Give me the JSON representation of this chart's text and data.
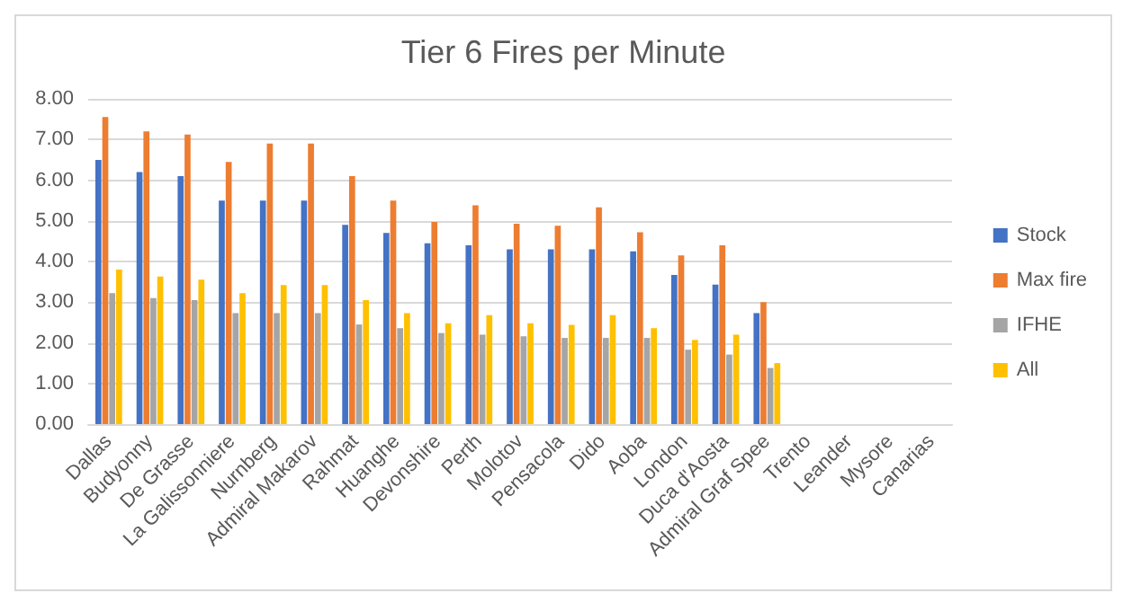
{
  "chart_data": {
    "type": "bar",
    "title": "Tier 6 Fires per Minute",
    "categories": [
      "Dallas",
      "Budyonny",
      "De Grasse",
      "La Galissonniere",
      "Nurnberg",
      "Admiral Makarov",
      "Rahmat",
      "Huanghe",
      "Devonshire",
      "Perth",
      "Molotov",
      "Pensacola",
      "Dido",
      "Aoba",
      "London",
      "Duca d'Aosta",
      "Admiral Graf Spee",
      "Trento",
      "Leander",
      "Mysore",
      "Canarias"
    ],
    "series": [
      {
        "name": "Stock",
        "color": "#4472c4",
        "values": [
          6.5,
          6.2,
          6.1,
          5.5,
          5.5,
          5.5,
          4.9,
          4.7,
          4.45,
          4.4,
          4.3,
          4.3,
          4.3,
          4.25,
          3.67,
          3.43,
          2.73,
          null,
          null,
          null,
          null
        ]
      },
      {
        "name": "Max fire",
        "color": "#ed7d31",
        "values": [
          7.55,
          7.2,
          7.12,
          6.45,
          6.9,
          6.9,
          6.1,
          5.5,
          4.97,
          5.38,
          4.93,
          4.88,
          5.33,
          4.72,
          4.15,
          4.4,
          3.0,
          null,
          null,
          null,
          null
        ]
      },
      {
        "name": "IFHE",
        "color": "#a5a5a5",
        "values": [
          3.22,
          3.1,
          3.05,
          2.73,
          2.73,
          2.73,
          2.45,
          2.36,
          2.24,
          2.2,
          2.16,
          2.12,
          2.12,
          2.12,
          1.83,
          1.71,
          1.38,
          null,
          null,
          null,
          null
        ]
      },
      {
        "name": "All",
        "color": "#ffc000",
        "values": [
          3.8,
          3.63,
          3.55,
          3.22,
          3.42,
          3.42,
          3.05,
          2.73,
          2.48,
          2.68,
          2.48,
          2.44,
          2.68,
          2.36,
          2.07,
          2.2,
          1.5,
          null,
          null,
          null,
          null
        ]
      }
    ],
    "ylim": [
      0,
      8
    ],
    "yticks": [
      {
        "value": 0,
        "label": "0.00"
      },
      {
        "value": 1,
        "label": "1.00"
      },
      {
        "value": 2,
        "label": "2.00"
      },
      {
        "value": 3,
        "label": "3.00"
      },
      {
        "value": 4,
        "label": "4.00"
      },
      {
        "value": 5,
        "label": "5.00"
      },
      {
        "value": 6,
        "label": "6.00"
      },
      {
        "value": 7,
        "label": "7.00"
      },
      {
        "value": 8,
        "label": "8.00"
      }
    ],
    "grid": "y",
    "legend": "right"
  }
}
